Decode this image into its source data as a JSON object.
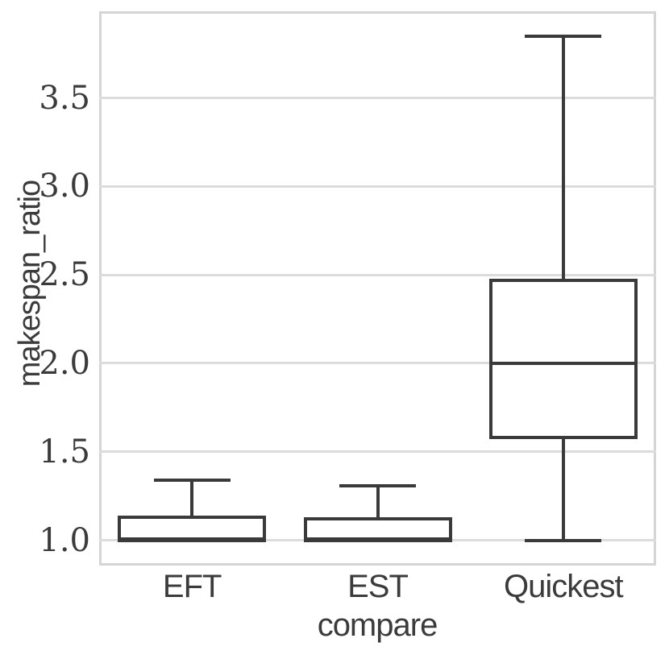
{
  "figure": {
    "background": "#ffffff"
  },
  "chart_data": {
    "type": "box",
    "title": "",
    "xlabel": "compare",
    "ylabel": "makespan_ratio",
    "categories": [
      "EFT",
      "EST",
      "Quickest"
    ],
    "series": [
      {
        "name": "EFT",
        "min": 1.0,
        "q1": 1.0,
        "median": 1.0,
        "q3": 1.14,
        "max": 1.34
      },
      {
        "name": "EST",
        "min": 1.0,
        "q1": 1.0,
        "median": 1.0,
        "q3": 1.13,
        "max": 1.31
      },
      {
        "name": "Quickest",
        "min": 1.0,
        "q1": 1.57,
        "median": 2.0,
        "q3": 2.48,
        "max": 3.85
      }
    ],
    "yticks": [
      {
        "value": 1.0,
        "label": "1.0"
      },
      {
        "value": 1.5,
        "label": "1.5"
      },
      {
        "value": 2.0,
        "label": "2.0"
      },
      {
        "value": 2.5,
        "label": "2.5"
      },
      {
        "value": 3.0,
        "label": "3.0"
      },
      {
        "value": 3.5,
        "label": "3.5"
      }
    ],
    "ylim": [
      0.857,
      3.99
    ],
    "grid": "horizontal",
    "legend": "none",
    "colors": {
      "box_line": "#3a3a3a",
      "grid_line": "#dcdcdc",
      "spine": "#d5d5d5",
      "text": "#3b3b3b",
      "box_fill": "#ffffff"
    }
  }
}
